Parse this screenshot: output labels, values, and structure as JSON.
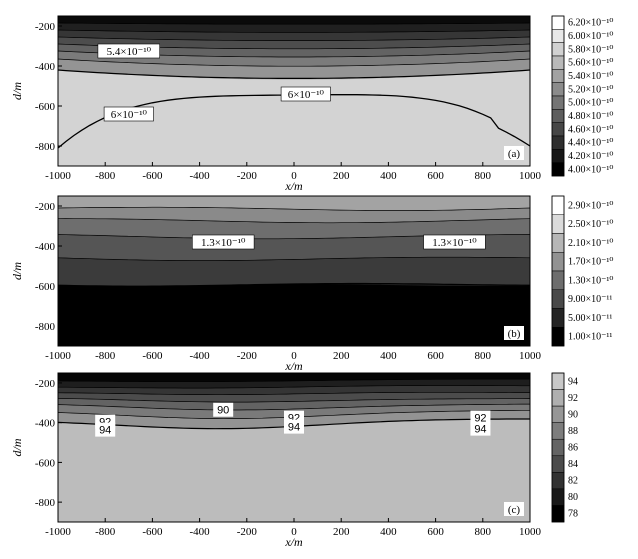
{
  "chart_data": [
    {
      "type": "heatmap",
      "panel_label": "(a)",
      "xlabel": "x/m",
      "ylabel": "d/m",
      "xlim": [
        -1000,
        1000
      ],
      "ylim": [
        -900,
        -150
      ],
      "x_ticks": [
        "-1000",
        "-800",
        "-600",
        "-400",
        "-200",
        "0",
        "200",
        "400",
        "600",
        "800",
        "1000"
      ],
      "y_ticks": [
        "-200",
        "-400",
        "-600",
        "-800"
      ],
      "colorbar": [
        "6.20×10⁻¹⁰",
        "6.00×10⁻¹⁰",
        "5.80×10⁻¹⁰",
        "5.60×10⁻¹⁰",
        "5.40×10⁻¹⁰",
        "5.20×10⁻¹⁰",
        "5.00×10⁻¹⁰",
        "4.80×10⁻¹⁰",
        "4.60×10⁻¹⁰",
        "4.40×10⁻¹⁰",
        "4.20×10⁻¹⁰",
        "4.00×10⁻¹⁰"
      ],
      "band_colors": [
        "#0a0a0a",
        "#202020",
        "#363636",
        "#4d4d4d",
        "#636363",
        "#7b7b7b",
        "#949494",
        "#adadad",
        "#d3d3d3"
      ],
      "contour_depths": [
        -185,
        -220,
        -255,
        -290,
        -325,
        -365,
        -420
      ],
      "contour_annotations": [
        {
          "text": "5.4×10⁻¹⁰",
          "x": -700,
          "y": -330
        },
        {
          "text": "6×10⁻¹⁰",
          "x": 50,
          "y": -545
        },
        {
          "text": "6×10⁻¹⁰",
          "x": -700,
          "y": -645
        }
      ]
    },
    {
      "type": "heatmap",
      "panel_label": "(b)",
      "xlabel": "x/m",
      "ylabel": "d/m",
      "xlim": [
        -1000,
        1000
      ],
      "ylim": [
        -900,
        -150
      ],
      "x_ticks": [
        "-1000",
        "-800",
        "-600",
        "-400",
        "-200",
        "0",
        "200",
        "400",
        "600",
        "800",
        "1000"
      ],
      "y_ticks": [
        "-200",
        "-400",
        "-600",
        "-800"
      ],
      "colorbar": [
        "2.90×10⁻¹⁰",
        "2.50×10⁻¹⁰",
        "2.10×10⁻¹⁰",
        "1.70×10⁻¹⁰",
        "1.30×10⁻¹⁰",
        "9.00×10⁻¹¹",
        "5.00×10⁻¹¹",
        "1.00×10⁻¹¹"
      ],
      "band_colors": [
        "#a3a3a3",
        "#8a8a8a",
        "#6e6e6e",
        "#555555",
        "#3b3b3b",
        "#222222",
        "#000000"
      ],
      "contour_depths": [
        -210,
        -270,
        -350,
        -460,
        -590
      ],
      "contour_annotations": [
        {
          "text": "1.3×10⁻¹⁰",
          "x": -300,
          "y": -385
        },
        {
          "text": "1.3×10⁻¹⁰",
          "x": 680,
          "y": -385
        }
      ]
    },
    {
      "type": "heatmap",
      "panel_label": "(c)",
      "xlabel": "x/m",
      "ylabel": "d/m",
      "xlim": [
        -1000,
        1000
      ],
      "ylim": [
        -900,
        -150
      ],
      "x_ticks": [
        "-1000",
        "-800",
        "-600",
        "-400",
        "-200",
        "0",
        "200",
        "400",
        "600",
        "800",
        "1000"
      ],
      "y_ticks": [
        "-200",
        "-400",
        "-600",
        "-800"
      ],
      "colorbar": [
        "94",
        "92",
        "90",
        "88",
        "86",
        "84",
        "82",
        "80",
        "78"
      ],
      "band_colors": [
        "#050505",
        "#1e1e1e",
        "#353535",
        "#4c4c4c",
        "#636363",
        "#7a7a7a",
        "#939393",
        "#bcbcbc"
      ],
      "contour_depths": [
        -185,
        -215,
        -245,
        -275,
        -305,
        -340,
        -385
      ],
      "contour_annotations": [
        {
          "text": "92",
          "x": -800,
          "y": -400
        },
        {
          "text": "94",
          "x": -800,
          "y": -440
        },
        {
          "text": "90",
          "x": -300,
          "y": -340
        },
        {
          "text": "92",
          "x": 0,
          "y": -380
        },
        {
          "text": "94",
          "x": 0,
          "y": -425
        },
        {
          "text": "92",
          "x": 790,
          "y": -380
        },
        {
          "text": "94",
          "x": 790,
          "y": -435
        }
      ]
    }
  ]
}
